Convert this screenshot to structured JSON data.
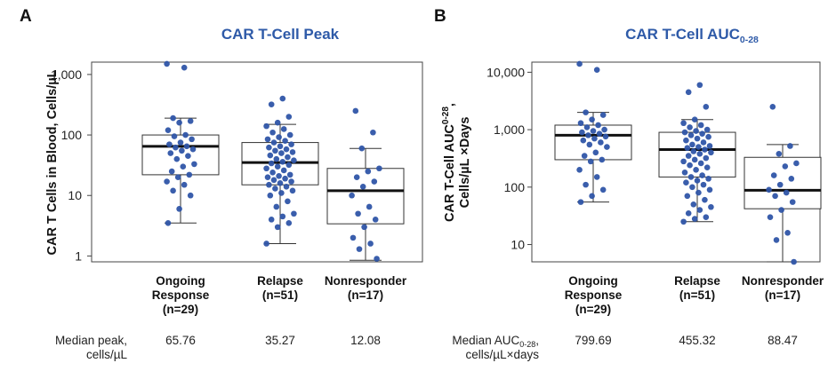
{
  "chart_data": [
    {
      "panel": "A",
      "type": "box",
      "title": "CAR T-Cell Peak",
      "ylabel": "CAR T Cells in Blood, Cells/µL",
      "yscale": "log",
      "ylim": [
        0.8,
        1600
      ],
      "yticks": [
        1,
        10,
        100,
        1000
      ],
      "ytick_labels": [
        "1",
        "10",
        "100",
        "1,000"
      ],
      "categories": [
        {
          "line1": "Ongoing",
          "line2": "Response",
          "line3": "(n=29)"
        },
        {
          "line1": "Relapse",
          "line2": "(n=51)",
          "line3": ""
        },
        {
          "line1": "Nonresponder",
          "line2": "(n=17)",
          "line3": ""
        }
      ],
      "boxes": [
        {
          "whisker_low": 3.5,
          "q1": 22,
          "median": 65,
          "q3": 100,
          "whisker_high": 190
        },
        {
          "whisker_low": 1.6,
          "q1": 15,
          "median": 35,
          "q3": 75,
          "whisker_high": 150
        },
        {
          "whisker_low": 0.85,
          "q1": 3.4,
          "median": 12,
          "q3": 28,
          "whisker_high": 60
        }
      ],
      "points": [
        [
          1500,
          1300,
          190,
          170,
          160,
          120,
          100,
          95,
          85,
          75,
          70,
          65,
          62,
          58,
          55,
          50,
          45,
          40,
          33,
          30,
          25,
          22,
          20,
          17,
          15,
          12,
          10,
          6,
          3.5
        ],
        [
          400,
          320,
          200,
          160,
          140,
          125,
          110,
          100,
          92,
          85,
          80,
          75,
          70,
          65,
          62,
          58,
          55,
          52,
          50,
          46,
          43,
          40,
          38,
          36,
          34,
          32,
          30,
          28,
          26,
          24,
          22,
          21,
          20,
          19,
          18,
          17,
          16,
          15,
          14,
          13,
          12,
          11,
          10,
          8,
          6.5,
          5,
          4.5,
          4,
          3.5,
          3,
          1.6
        ],
        [
          250,
          110,
          60,
          28,
          25,
          20,
          17,
          14,
          10,
          6.5,
          5,
          4,
          3,
          2,
          1.6,
          1.3,
          0.9
        ]
      ],
      "median_row_label_line1": "Median peak,",
      "median_row_label_line2": "cells/µL",
      "median_values": [
        "65.76",
        "35.27",
        "12.08"
      ]
    },
    {
      "panel": "B",
      "type": "box",
      "title": "CAR T-Cell AUC",
      "title_subscript": "0-28",
      "ylabel_line1": "CAR T-Cell AUC",
      "ylabel_line1_subscript": "0-28",
      "ylabel_line1_tail": ",",
      "ylabel_line2": "Cells/µL ×Days",
      "yscale": "log",
      "ylim": [
        5,
        15000
      ],
      "yticks": [
        10,
        100,
        1000,
        10000
      ],
      "ytick_labels": [
        "10",
        "100",
        "1,000",
        "10,000"
      ],
      "categories": [
        {
          "line1": "Ongoing",
          "line2": "Response",
          "line3": "(n=29)"
        },
        {
          "line1": "Relapse",
          "line2": "(n=51)",
          "line3": ""
        },
        {
          "line1": "Nonresponder",
          "line2": "(n=17)",
          "line3": ""
        }
      ],
      "boxes": [
        {
          "whisker_low": 55,
          "q1": 300,
          "median": 800,
          "q3": 1200,
          "whisker_high": 2000
        },
        {
          "whisker_low": 25,
          "q1": 150,
          "median": 450,
          "q3": 900,
          "whisker_high": 1500
        },
        {
          "whisker_low": 5,
          "q1": 42,
          "median": 88,
          "q3": 330,
          "whisker_high": 550
        }
      ],
      "points": [
        [
          14000,
          11000,
          2000,
          1800,
          1500,
          1300,
          1200,
          1100,
          1000,
          950,
          900,
          850,
          800,
          760,
          700,
          650,
          600,
          550,
          500,
          400,
          350,
          300,
          280,
          200,
          150,
          110,
          90,
          70,
          55
        ],
        [
          6000,
          4500,
          2500,
          1500,
          1300,
          1200,
          1100,
          1000,
          950,
          900,
          850,
          800,
          750,
          700,
          650,
          600,
          550,
          520,
          500,
          480,
          450,
          420,
          400,
          380,
          350,
          320,
          300,
          280,
          260,
          240,
          220,
          200,
          180,
          160,
          150,
          140,
          130,
          120,
          110,
          100,
          90,
          80,
          70,
          60,
          50,
          45,
          40,
          35,
          30,
          28,
          25
        ],
        [
          2500,
          520,
          380,
          260,
          230,
          160,
          140,
          110,
          90,
          80,
          70,
          55,
          40,
          30,
          16,
          12,
          5
        ]
      ],
      "median_row_label_line1": "Median AUC",
      "median_row_label_sub": "0-28",
      "median_row_label_tail": ",",
      "median_row_label_line2": "cells/µL×days",
      "median_values": [
        "799.69",
        "455.32",
        "88.47"
      ]
    }
  ],
  "colors": {
    "title": "#2e5aa8",
    "points": "#2f55a8",
    "box": "#333333",
    "median": "#111111"
  }
}
